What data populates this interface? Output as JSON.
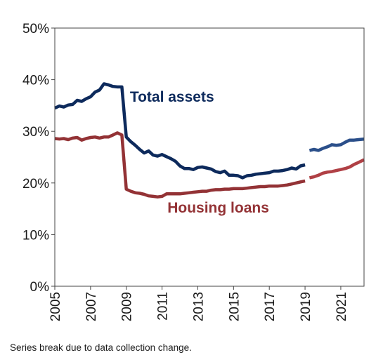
{
  "chart_data": {
    "type": "line",
    "title": "",
    "xlabel": "",
    "ylabel": "",
    "xlim": [
      2005,
      2022.3
    ],
    "ylim": [
      0,
      50
    ],
    "y_ticks": [
      0,
      10,
      20,
      30,
      40,
      50
    ],
    "y_tick_labels": [
      "0%",
      "10%",
      "20%",
      "30%",
      "40%",
      "50%"
    ],
    "x_ticks": [
      2005,
      2007,
      2009,
      2011,
      2013,
      2015,
      2017,
      2019,
      2021
    ],
    "x_tick_labels": [
      "2005",
      "2007",
      "2009",
      "2011",
      "2013",
      "2015",
      "2017",
      "2019",
      "2021"
    ],
    "grid": false,
    "legend": "none",
    "series": [
      {
        "name": "Total assets",
        "color": "#0d2a5c",
        "color_after_break": "#2b4f8a",
        "segments": [
          [
            [
              2005.0,
              34.5
            ],
            [
              2005.25,
              34.9
            ],
            [
              2005.5,
              34.7
            ],
            [
              2005.75,
              35.1
            ],
            [
              2006.0,
              35.2
            ],
            [
              2006.25,
              36.0
            ],
            [
              2006.5,
              35.8
            ],
            [
              2006.75,
              36.3
            ],
            [
              2007.0,
              36.7
            ],
            [
              2007.25,
              37.6
            ],
            [
              2007.5,
              38.0
            ],
            [
              2007.75,
              39.2
            ],
            [
              2008.0,
              39.0
            ],
            [
              2008.25,
              38.7
            ],
            [
              2008.5,
              38.6
            ],
            [
              2008.75,
              38.6
            ],
            [
              2009.0,
              28.9
            ],
            [
              2009.25,
              28.0
            ],
            [
              2009.5,
              27.3
            ],
            [
              2009.75,
              26.5
            ],
            [
              2010.0,
              25.8
            ],
            [
              2010.25,
              26.2
            ],
            [
              2010.5,
              25.4
            ],
            [
              2010.75,
              25.2
            ],
            [
              2011.0,
              25.5
            ],
            [
              2011.25,
              25.1
            ],
            [
              2011.5,
              24.7
            ],
            [
              2011.75,
              24.2
            ],
            [
              2012.0,
              23.3
            ],
            [
              2012.25,
              22.8
            ],
            [
              2012.5,
              22.8
            ],
            [
              2012.75,
              22.6
            ],
            [
              2013.0,
              23.0
            ],
            [
              2013.25,
              23.1
            ],
            [
              2013.5,
              22.9
            ],
            [
              2013.75,
              22.7
            ],
            [
              2014.0,
              22.2
            ],
            [
              2014.25,
              22.0
            ],
            [
              2014.5,
              22.3
            ],
            [
              2014.75,
              21.5
            ],
            [
              2015.0,
              21.5
            ],
            [
              2015.25,
              21.4
            ],
            [
              2015.5,
              21.0
            ],
            [
              2015.75,
              21.4
            ],
            [
              2016.0,
              21.5
            ],
            [
              2016.25,
              21.7
            ],
            [
              2016.5,
              21.8
            ],
            [
              2016.75,
              21.9
            ],
            [
              2017.0,
              22.0
            ],
            [
              2017.25,
              22.3
            ],
            [
              2017.5,
              22.3
            ],
            [
              2017.75,
              22.4
            ],
            [
              2018.0,
              22.6
            ],
            [
              2018.25,
              22.9
            ],
            [
              2018.5,
              22.7
            ],
            [
              2018.75,
              23.3
            ],
            [
              2019.0,
              23.5
            ]
          ],
          [
            [
              2019.25,
              26.3
            ],
            [
              2019.5,
              26.5
            ],
            [
              2019.75,
              26.3
            ],
            [
              2020.0,
              26.7
            ],
            [
              2020.25,
              27.0
            ],
            [
              2020.5,
              27.4
            ],
            [
              2020.75,
              27.3
            ],
            [
              2021.0,
              27.4
            ],
            [
              2021.25,
              27.9
            ],
            [
              2021.5,
              28.3
            ],
            [
              2021.75,
              28.3
            ],
            [
              2022.0,
              28.4
            ],
            [
              2022.3,
              28.5
            ]
          ]
        ]
      },
      {
        "name": "Housing loans",
        "color": "#933235",
        "color_after_break": "#b04045",
        "segments": [
          [
            [
              2005.0,
              28.6
            ],
            [
              2005.25,
              28.5
            ],
            [
              2005.5,
              28.6
            ],
            [
              2005.75,
              28.4
            ],
            [
              2006.0,
              28.7
            ],
            [
              2006.25,
              28.8
            ],
            [
              2006.5,
              28.3
            ],
            [
              2006.75,
              28.6
            ],
            [
              2007.0,
              28.8
            ],
            [
              2007.25,
              28.9
            ],
            [
              2007.5,
              28.7
            ],
            [
              2007.75,
              28.9
            ],
            [
              2008.0,
              28.9
            ],
            [
              2008.25,
              29.3
            ],
            [
              2008.5,
              29.7
            ],
            [
              2008.75,
              29.3
            ],
            [
              2009.0,
              18.8
            ],
            [
              2009.25,
              18.4
            ],
            [
              2009.5,
              18.1
            ],
            [
              2009.75,
              18.0
            ],
            [
              2010.0,
              17.8
            ],
            [
              2010.25,
              17.5
            ],
            [
              2010.5,
              17.4
            ],
            [
              2010.75,
              17.3
            ],
            [
              2011.0,
              17.4
            ],
            [
              2011.25,
              17.9
            ],
            [
              2011.5,
              17.9
            ],
            [
              2011.75,
              17.9
            ],
            [
              2012.0,
              17.9
            ],
            [
              2012.25,
              18.0
            ],
            [
              2012.5,
              18.1
            ],
            [
              2012.75,
              18.2
            ],
            [
              2013.0,
              18.3
            ],
            [
              2013.25,
              18.4
            ],
            [
              2013.5,
              18.4
            ],
            [
              2013.75,
              18.6
            ],
            [
              2014.0,
              18.7
            ],
            [
              2014.25,
              18.7
            ],
            [
              2014.5,
              18.8
            ],
            [
              2014.75,
              18.8
            ],
            [
              2015.0,
              18.9
            ],
            [
              2015.25,
              18.9
            ],
            [
              2015.5,
              18.9
            ],
            [
              2015.75,
              19.0
            ],
            [
              2016.0,
              19.1
            ],
            [
              2016.25,
              19.2
            ],
            [
              2016.5,
              19.3
            ],
            [
              2016.75,
              19.3
            ],
            [
              2017.0,
              19.4
            ],
            [
              2017.25,
              19.4
            ],
            [
              2017.5,
              19.4
            ],
            [
              2017.75,
              19.5
            ],
            [
              2018.0,
              19.6
            ],
            [
              2018.25,
              19.8
            ],
            [
              2018.5,
              20.0
            ],
            [
              2018.75,
              20.2
            ],
            [
              2019.0,
              20.4
            ]
          ],
          [
            [
              2019.25,
              21.0
            ],
            [
              2019.5,
              21.2
            ],
            [
              2019.75,
              21.5
            ],
            [
              2020.0,
              21.9
            ],
            [
              2020.25,
              22.1
            ],
            [
              2020.5,
              22.2
            ],
            [
              2020.75,
              22.4
            ],
            [
              2021.0,
              22.6
            ],
            [
              2021.25,
              22.8
            ],
            [
              2021.5,
              23.1
            ],
            [
              2021.75,
              23.6
            ],
            [
              2022.0,
              24.0
            ],
            [
              2022.3,
              24.5
            ]
          ]
        ]
      }
    ],
    "annotations": [
      "Total assets",
      "Housing loans"
    ]
  },
  "footnote": "Series break due to data collection change."
}
